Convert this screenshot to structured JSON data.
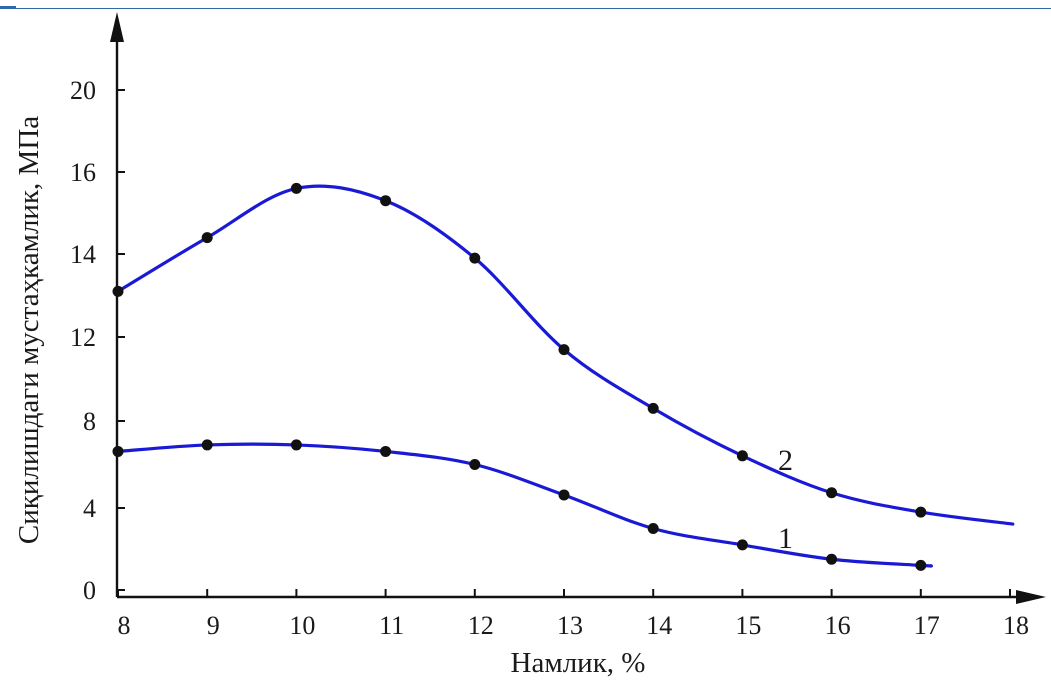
{
  "chart_data": {
    "type": "line",
    "xlabel": "Намлик, %",
    "ylabel": "Сиқилишдаги мустаҳкамлик, МПа",
    "x_ticks": [
      "8",
      "9",
      "10",
      "11",
      "12",
      "13",
      "14",
      "15",
      "16",
      "17",
      "18"
    ],
    "y_ticks": [
      "0",
      "4",
      "8",
      "12",
      "14",
      "16",
      "20"
    ],
    "grid": false,
    "series": [
      {
        "name": "1",
        "color": "#1a1ad6",
        "x": [
          8,
          9,
          10,
          11,
          12,
          13,
          14,
          15,
          16,
          17
        ],
        "y": [
          6.6,
          6.9,
          6.9,
          6.6,
          6.0,
          4.6,
          3.0,
          2.2,
          1.5,
          1.2
        ]
      },
      {
        "name": "2",
        "color": "#1a1ad6",
        "x": [
          8,
          9,
          10,
          11,
          12,
          13,
          14,
          15,
          16,
          17
        ],
        "y": [
          13.1,
          14.4,
          15.6,
          15.3,
          13.9,
          11.4,
          8.6,
          6.4,
          4.7,
          3.8
        ]
      }
    ]
  }
}
